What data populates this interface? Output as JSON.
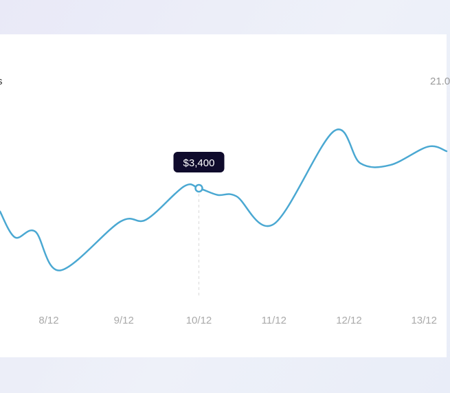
{
  "header": {
    "left_label": "s",
    "right_label": "21.0"
  },
  "tooltip": {
    "label": "$3,400",
    "category": "10/12"
  },
  "colors": {
    "line": "#4aa8d2",
    "tooltip_bg": "#0f0b2c",
    "card": "#ffffff"
  },
  "chart_data": {
    "type": "line",
    "categories": [
      "8/12",
      "9/12",
      "10/12",
      "11/12",
      "12/12",
      "13/12"
    ],
    "x_range": [
      7.35,
      13.3
    ],
    "y_range": [
      1000,
      5000
    ],
    "grid": false,
    "series": [
      {
        "values": [
          [
            7.35,
            2880
          ],
          [
            7.55,
            2300
          ],
          [
            7.82,
            2430
          ],
          [
            8.15,
            1560
          ],
          [
            8.95,
            2650
          ],
          [
            9.3,
            2700
          ],
          [
            9.8,
            3440
          ],
          [
            10.0,
            3400
          ],
          [
            10.25,
            3250
          ],
          [
            10.5,
            3220
          ],
          [
            11.0,
            2600
          ],
          [
            11.8,
            4680
          ],
          [
            12.15,
            3960
          ],
          [
            12.55,
            3920
          ],
          [
            13.05,
            4330
          ],
          [
            13.3,
            4230
          ]
        ]
      }
    ]
  }
}
